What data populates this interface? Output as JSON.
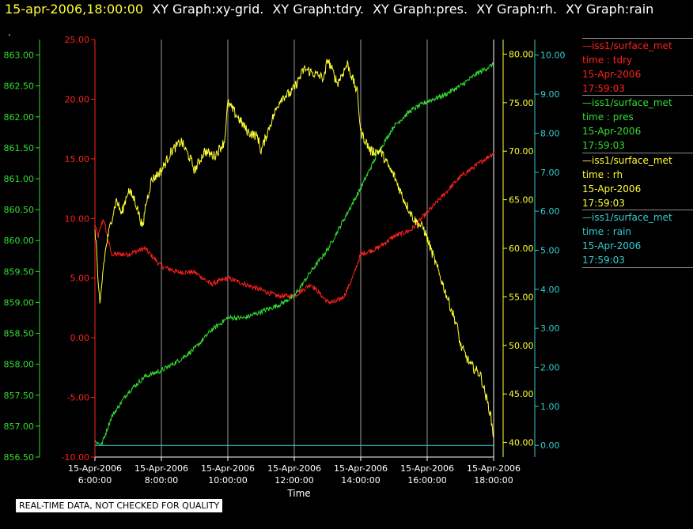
{
  "header": {
    "timestamp": "15-apr-2006,18:00:00",
    "graphs": [
      "XY Graph:xy-grid.",
      "XY Graph:tdry.",
      "XY Graph:pres.",
      "XY Graph:rh.",
      "XY Graph:rain"
    ]
  },
  "dot": ".",
  "legend": [
    {
      "source": "—iss1/surface_met",
      "var": "time : tdry",
      "date": "15-Apr-2006",
      "time": "17:59:03",
      "color": "#ff2020"
    },
    {
      "source": "—iss1/surface_met",
      "var": "time : pres",
      "date": "15-Apr-2006",
      "time": "17:59:03",
      "color": "#33dd33"
    },
    {
      "source": "—iss1/surface_met",
      "var": "time : rh",
      "date": "15-Apr-2006",
      "time": "17:59:03",
      "color": "#ffff33"
    },
    {
      "source": "—iss1/surface_met",
      "var": "time : rain",
      "date": "15-Apr-2006",
      "time": "17:59:03",
      "color": "#33cccc"
    }
  ],
  "quality_note": "REAL-TIME DATA, NOT CHECKED FOR QUALITY",
  "chart_data": {
    "type": "line",
    "xlabel": "Time",
    "x_ticks": [
      {
        "date": "15-Apr-2006",
        "time": "6:00:00"
      },
      {
        "date": "15-Apr-2006",
        "time": "8:00:00"
      },
      {
        "date": "15-Apr-2006",
        "time": "10:00:00"
      },
      {
        "date": "15-Apr-2006",
        "time": "12:00:00"
      },
      {
        "date": "15-Apr-2006",
        "time": "14:00:00"
      },
      {
        "date": "15-Apr-2006",
        "time": "16:00:00"
      },
      {
        "date": "15-Apr-2006",
        "time": "18:00:00"
      }
    ],
    "xlim_hours": [
      6,
      18
    ],
    "grid": "vertical",
    "axes": {
      "pres": {
        "ylim": [
          856.5,
          863.25
        ],
        "ticks": [
          "856.50",
          "857.00",
          "857.50",
          "858.00",
          "858.50",
          "859.00",
          "859.50",
          "860.00",
          "860.50",
          "861.00",
          "861.50",
          "862.00",
          "862.50",
          "863.00"
        ],
        "color": "#33dd33"
      },
      "tdry": {
        "ylim": [
          -10,
          25
        ],
        "ticks": [
          "-10.00",
          "-5.00",
          "0.00",
          "5.00",
          "10.00",
          "15.00",
          "20.00",
          "25.00"
        ],
        "color": "#ff2020"
      },
      "rh": {
        "ylim": [
          38.5,
          81.5
        ],
        "ticks": [
          "40.00",
          "45.00",
          "50.00",
          "55.00",
          "60.00",
          "65.00",
          "70.00",
          "75.00",
          "80.00"
        ],
        "color": "#ffff33"
      },
      "rain": {
        "ylim": [
          -0.3,
          10.4
        ],
        "ticks": [
          "0.00",
          "1.00",
          "2.00",
          "3.00",
          "4.00",
          "5.00",
          "6.00",
          "7.00",
          "8.00",
          "9.00",
          "10.00"
        ],
        "color": "#33cccc"
      }
    },
    "series": [
      {
        "name": "tdry",
        "axis": "tdry",
        "color": "#ff2020",
        "x": [
          6.0,
          6.1,
          6.25,
          6.5,
          7.0,
          7.5,
          8.0,
          8.5,
          9.0,
          9.5,
          10.0,
          10.5,
          11.0,
          11.5,
          12.0,
          12.5,
          13.0,
          13.25,
          13.5,
          13.75,
          14.0,
          14.5,
          15.0,
          15.5,
          16.0,
          16.5,
          17.0,
          17.5,
          18.0
        ],
        "y": [
          9.5,
          8.5,
          10.0,
          7.0,
          7.0,
          7.5,
          6.0,
          5.5,
          5.5,
          4.5,
          5.0,
          4.5,
          4.0,
          3.5,
          3.5,
          4.5,
          3.0,
          3.0,
          3.5,
          5.0,
          7.0,
          7.5,
          8.5,
          9.0,
          10.5,
          12.0,
          13.5,
          14.5,
          15.5
        ]
      },
      {
        "name": "pres",
        "axis": "pres",
        "color": "#33dd33",
        "x": [
          6.0,
          6.2,
          6.5,
          7.0,
          7.5,
          8.0,
          8.5,
          9.0,
          9.5,
          10.0,
          10.5,
          11.0,
          11.5,
          12.0,
          12.5,
          13.0,
          13.5,
          14.0,
          14.5,
          15.0,
          15.5,
          16.0,
          16.5,
          17.0,
          17.5,
          18.0
        ],
        "y": [
          856.75,
          856.7,
          857.15,
          857.55,
          857.8,
          857.9,
          858.05,
          858.25,
          858.55,
          858.75,
          858.75,
          858.85,
          858.95,
          859.1,
          859.5,
          859.85,
          860.35,
          860.85,
          861.4,
          861.85,
          862.1,
          862.25,
          862.35,
          862.5,
          862.7,
          862.85
        ]
      },
      {
        "name": "rh",
        "axis": "rh",
        "color": "#ffff33",
        "x": [
          6.0,
          6.05,
          6.1,
          6.15,
          6.25,
          6.35,
          6.5,
          6.65,
          6.8,
          7.0,
          7.2,
          7.45,
          7.5,
          7.7,
          8.0,
          8.3,
          8.6,
          8.9,
          9.0,
          9.3,
          9.6,
          9.9,
          10.0,
          10.3,
          10.6,
          10.9,
          11.0,
          11.3,
          11.6,
          11.9,
          12.0,
          12.3,
          12.6,
          12.9,
          13.0,
          13.3,
          13.6,
          13.9,
          14.0,
          14.3,
          14.6,
          14.9,
          15.0,
          15.3,
          15.6,
          15.9,
          16.0,
          16.3,
          16.6,
          16.9,
          17.0,
          17.3,
          17.6,
          17.9,
          18.0
        ],
        "y": [
          62.0,
          60.0,
          56.0,
          54.0,
          58.0,
          60.5,
          63.0,
          65.0,
          63.5,
          66.0,
          65.0,
          62.0,
          64.0,
          67.0,
          68.0,
          70.0,
          71.0,
          69.0,
          68.0,
          70.0,
          69.5,
          71.0,
          75.0,
          73.5,
          72.0,
          71.5,
          70.0,
          73.0,
          75.5,
          76.0,
          76.5,
          78.5,
          78.0,
          77.5,
          79.5,
          77.0,
          79.0,
          76.0,
          72.0,
          70.0,
          70.0,
          68.0,
          67.5,
          65.0,
          63.0,
          62.0,
          61.0,
          58.0,
          55.0,
          52.0,
          50.0,
          48.0,
          47.0,
          43.0,
          40.5
        ]
      },
      {
        "name": "rain",
        "axis": "rain",
        "color": "#33cccc",
        "x": [
          6.0,
          18.0
        ],
        "y": [
          0.0,
          0.0
        ]
      }
    ]
  }
}
